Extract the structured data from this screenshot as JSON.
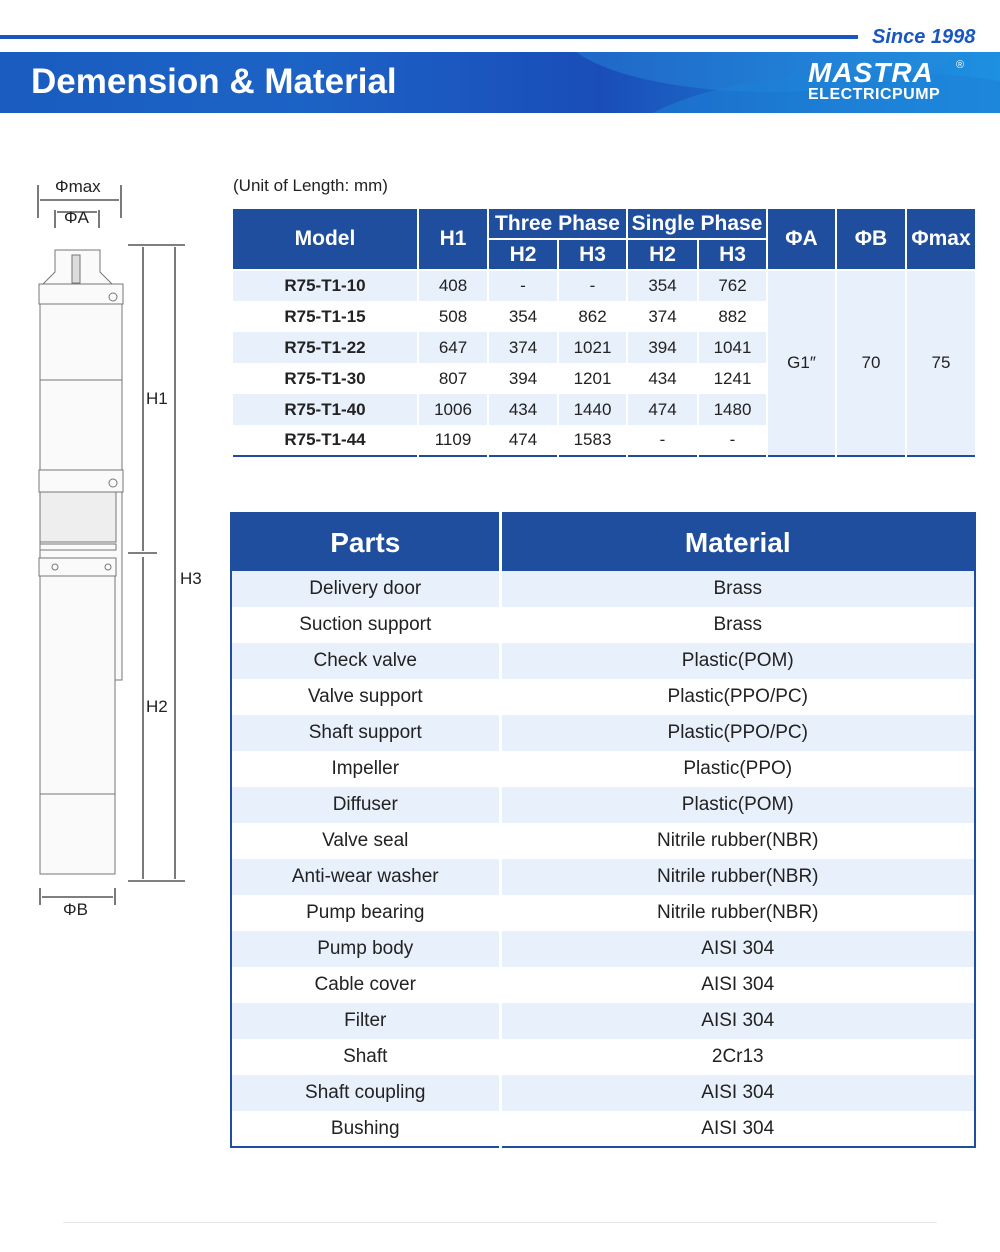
{
  "header": {
    "since": "Since 1998",
    "title": "Demension & Material",
    "logo_text": "MASTRA",
    "logo_sub": "ELECTRICPUMP",
    "logo_reg": "®",
    "accent": "#1f4e9e"
  },
  "drawing": {
    "labels": {
      "phimax": "Φmax",
      "phia": "ΦA",
      "phib": "ΦB",
      "h1": "H1",
      "h2": "H2",
      "h3": "H3"
    }
  },
  "dimensions": {
    "unit": "(Unit of Length: mm)",
    "headers": {
      "model": "Model",
      "h1": "H1",
      "three_phase": "Three Phase",
      "single_phase": "Single Phase",
      "h2": "H2",
      "h3": "H3",
      "phia": "ΦA",
      "phib": "ΦB",
      "phimax": "Φmax"
    },
    "rows": [
      {
        "model": "R75-T1-10",
        "h1": "408",
        "tp_h2": "-",
        "tp_h3": "-",
        "sp_h2": "354",
        "sp_h3": "762"
      },
      {
        "model": "R75-T1-15",
        "h1": "508",
        "tp_h2": "354",
        "tp_h3": "862",
        "sp_h2": "374",
        "sp_h3": "882"
      },
      {
        "model": "R75-T1-22",
        "h1": "647",
        "tp_h2": "374",
        "tp_h3": "1021",
        "sp_h2": "394",
        "sp_h3": "1041"
      },
      {
        "model": "R75-T1-30",
        "h1": "807",
        "tp_h2": "394",
        "tp_h3": "1201",
        "sp_h2": "434",
        "sp_h3": "1241"
      },
      {
        "model": "R75-T1-40",
        "h1": "1006",
        "tp_h2": "434",
        "tp_h3": "1440",
        "sp_h2": "474",
        "sp_h3": "1480"
      },
      {
        "model": "R75-T1-44",
        "h1": "1109",
        "tp_h2": "474",
        "tp_h3": "1583",
        "sp_h2": "-",
        "sp_h3": "-"
      }
    ],
    "phia": "G1″",
    "phib": "70",
    "phimax": "75"
  },
  "materials": {
    "headers": {
      "parts": "Parts",
      "material": "Material"
    },
    "rows": [
      {
        "part": "Delivery door",
        "material": "Brass"
      },
      {
        "part": "Suction support",
        "material": "Brass"
      },
      {
        "part": "Check valve",
        "material": "Plastic(POM)"
      },
      {
        "part": "Valve support",
        "material": "Plastic(PPO/PC)"
      },
      {
        "part": "Shaft support",
        "material": "Plastic(PPO/PC)"
      },
      {
        "part": "Impeller",
        "material": "Plastic(PPO)"
      },
      {
        "part": "Diffuser",
        "material": "Plastic(POM)"
      },
      {
        "part": "Valve seal",
        "material": "Nitrile rubber(NBR)"
      },
      {
        "part": "Anti-wear washer",
        "material": "Nitrile rubber(NBR)"
      },
      {
        "part": "Pump bearing",
        "material": "Nitrile rubber(NBR)"
      },
      {
        "part": "Pump body",
        "material": "AISI 304"
      },
      {
        "part": "Cable cover",
        "material": "AISI 304"
      },
      {
        "part": "Filter",
        "material": "AISI 304"
      },
      {
        "part": "Shaft",
        "material": "2Cr13"
      },
      {
        "part": "Shaft coupling",
        "material": "AISI 304"
      },
      {
        "part": "Bushing",
        "material": "AISI 304"
      }
    ]
  }
}
